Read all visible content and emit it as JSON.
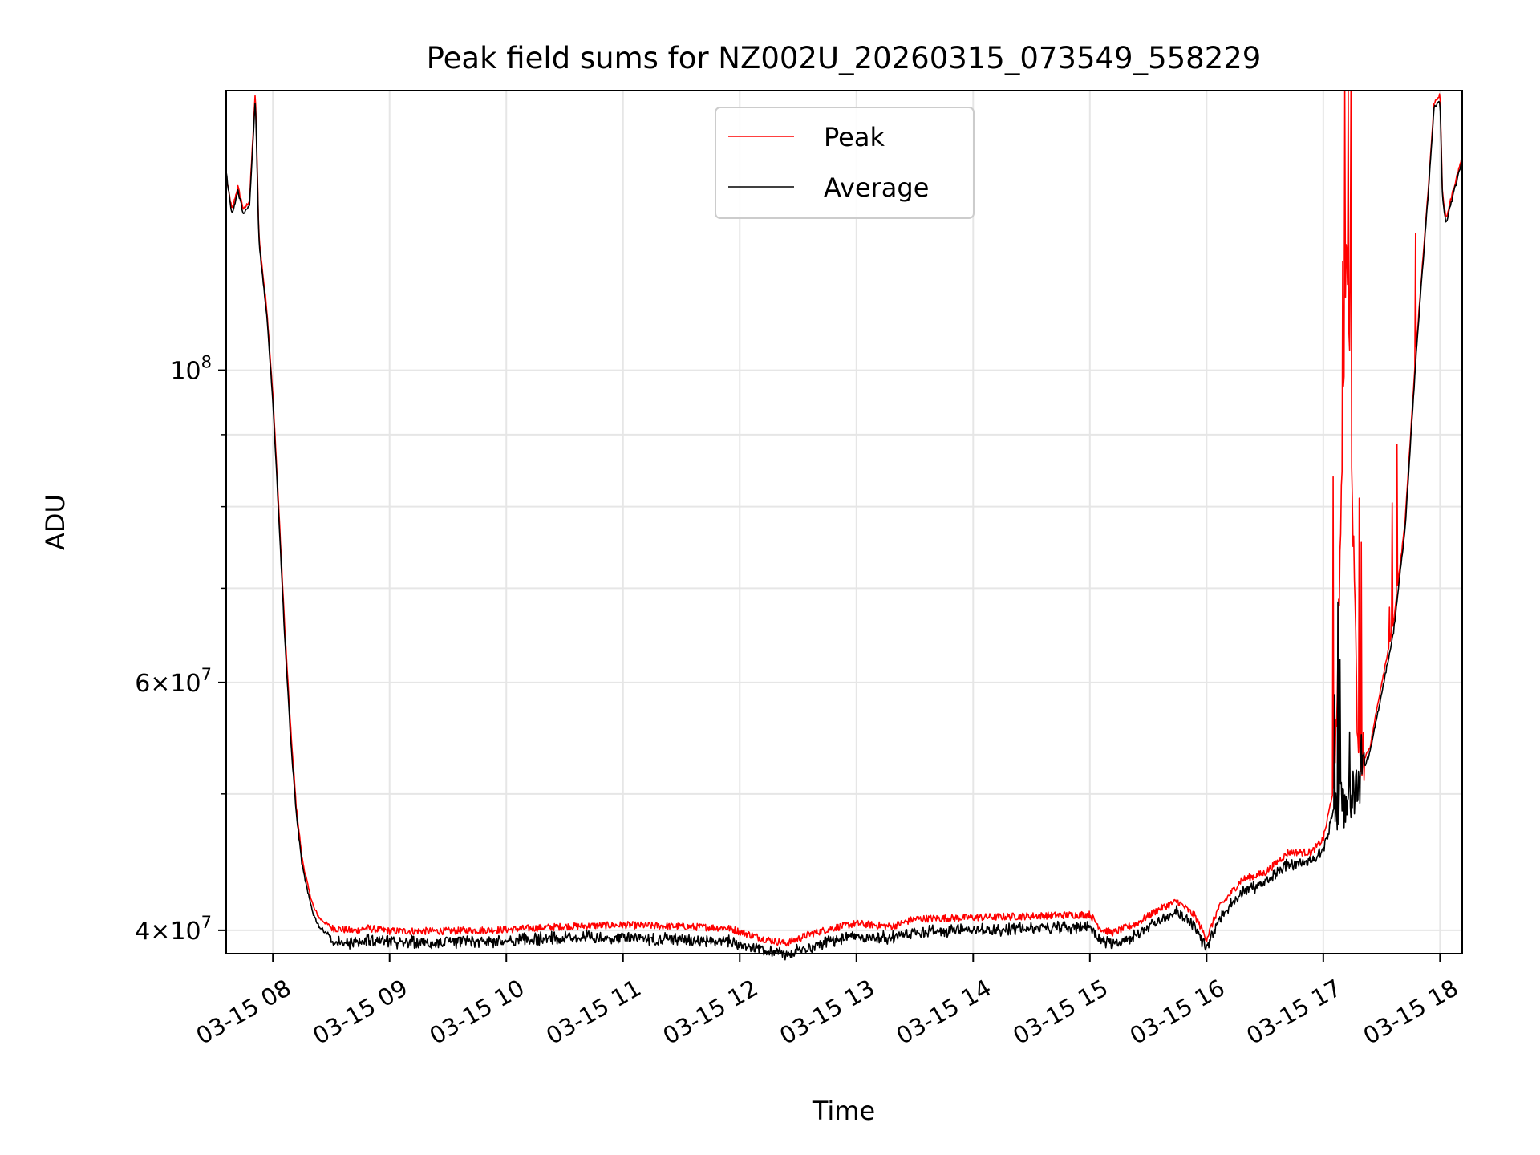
{
  "chart_data": {
    "type": "line",
    "title": "Peak field sums for NZ002U_20260315_073549_558229",
    "xlabel": "Time",
    "ylabel": "ADU",
    "yscale": "log",
    "ylim": [
      38500000,
      158000000
    ],
    "xlim_hours": [
      7.6,
      18.19
    ],
    "grid": true,
    "legend_position": "upper center",
    "x_ticks": [
      {
        "hour": 8,
        "label": "03-15 08"
      },
      {
        "hour": 9,
        "label": "03-15 09"
      },
      {
        "hour": 10,
        "label": "03-15 10"
      },
      {
        "hour": 11,
        "label": "03-15 11"
      },
      {
        "hour": 12,
        "label": "03-15 12"
      },
      {
        "hour": 13,
        "label": "03-15 13"
      },
      {
        "hour": 14,
        "label": "03-15 14"
      },
      {
        "hour": 15,
        "label": "03-15 15"
      },
      {
        "hour": 16,
        "label": "03-15 16"
      },
      {
        "hour": 17,
        "label": "03-15 17"
      },
      {
        "hour": 18,
        "label": "03-15 18"
      }
    ],
    "y_major_ticks": [
      {
        "value": 40000000,
        "base": "4",
        "mant": "10",
        "exp": "7"
      },
      {
        "value": 60000000,
        "base": "6",
        "mant": "10",
        "exp": "7"
      },
      {
        "value": 100000000,
        "base": "",
        "mant": "10",
        "exp": "8"
      }
    ],
    "y_minor_grid": [
      50000000,
      70000000,
      80000000,
      90000000
    ],
    "x_hours": [
      7.6,
      7.65,
      7.7,
      7.75,
      7.8,
      7.85,
      7.88,
      7.9,
      7.95,
      8.0,
      8.05,
      8.1,
      8.15,
      8.2,
      8.25,
      8.3,
      8.35,
      8.4,
      8.45,
      8.5,
      8.6,
      8.7,
      8.8,
      9.0,
      9.5,
      10.0,
      10.5,
      11.0,
      11.5,
      11.9,
      12.2,
      12.4,
      12.6,
      12.8,
      13.0,
      13.3,
      13.5,
      14.0,
      14.5,
      15.0,
      15.1,
      15.2,
      15.4,
      15.6,
      15.75,
      15.9,
      16.0,
      16.1,
      16.3,
      16.5,
      16.7,
      16.9,
      17.0,
      17.1,
      17.2,
      17.3,
      17.4,
      17.5,
      17.6,
      17.7,
      17.8,
      17.9,
      17.95,
      18.0,
      18.02,
      18.05,
      18.1,
      18.19
    ],
    "series": [
      {
        "name": "Peak",
        "color": "#ff0000",
        "values": [
          137000000,
          130000000,
          135000000,
          130000000,
          132000000,
          158000000,
          125000000,
          120000000,
          110000000,
          96000000,
          80000000,
          66000000,
          56000000,
          49000000,
          45000000,
          43000000,
          41500000,
          40800000,
          40500000,
          40200000,
          40100000,
          40000000,
          40200000,
          40000000,
          40000000,
          40100000,
          40300000,
          40400000,
          40300000,
          40200000,
          39500000,
          39200000,
          39800000,
          40200000,
          40500000,
          40300000,
          40800000,
          40900000,
          41000000,
          41100000,
          40100000,
          39900000,
          40500000,
          41500000,
          42000000,
          41000000,
          39500000,
          41500000,
          43500000,
          44000000,
          45500000,
          45500000,
          46500000,
          51000000,
          124000000,
          52000000,
          54000000,
          60000000,
          66000000,
          78000000,
          105000000,
          135000000,
          155000000,
          157000000,
          134000000,
          128000000,
          133000000,
          142000000
        ]
      },
      {
        "name": "Average",
        "color": "#000000",
        "values": [
          138000000,
          129000000,
          134000000,
          129000000,
          131000000,
          156000000,
          124000000,
          119000000,
          109000000,
          95000000,
          79000000,
          65000000,
          55000000,
          48500000,
          44500000,
          42500000,
          41000000,
          40200000,
          39900000,
          39600000,
          39500000,
          39500000,
          39700000,
          39500000,
          39500000,
          39600000,
          39800000,
          39800000,
          39700000,
          39600000,
          39000000,
          38700000,
          39200000,
          39600000,
          39900000,
          39800000,
          40200000,
          40300000,
          40400000,
          40500000,
          39600000,
          39400000,
          40000000,
          41000000,
          41500000,
          40500000,
          39000000,
          41000000,
          43000000,
          43500000,
          45000000,
          45000000,
          46000000,
          49000000,
          49000000,
          51000000,
          53500000,
          59000000,
          65000000,
          77000000,
          104000000,
          134000000,
          154000000,
          155000000,
          133000000,
          127000000,
          132000000,
          141000000
        ]
      }
    ]
  }
}
